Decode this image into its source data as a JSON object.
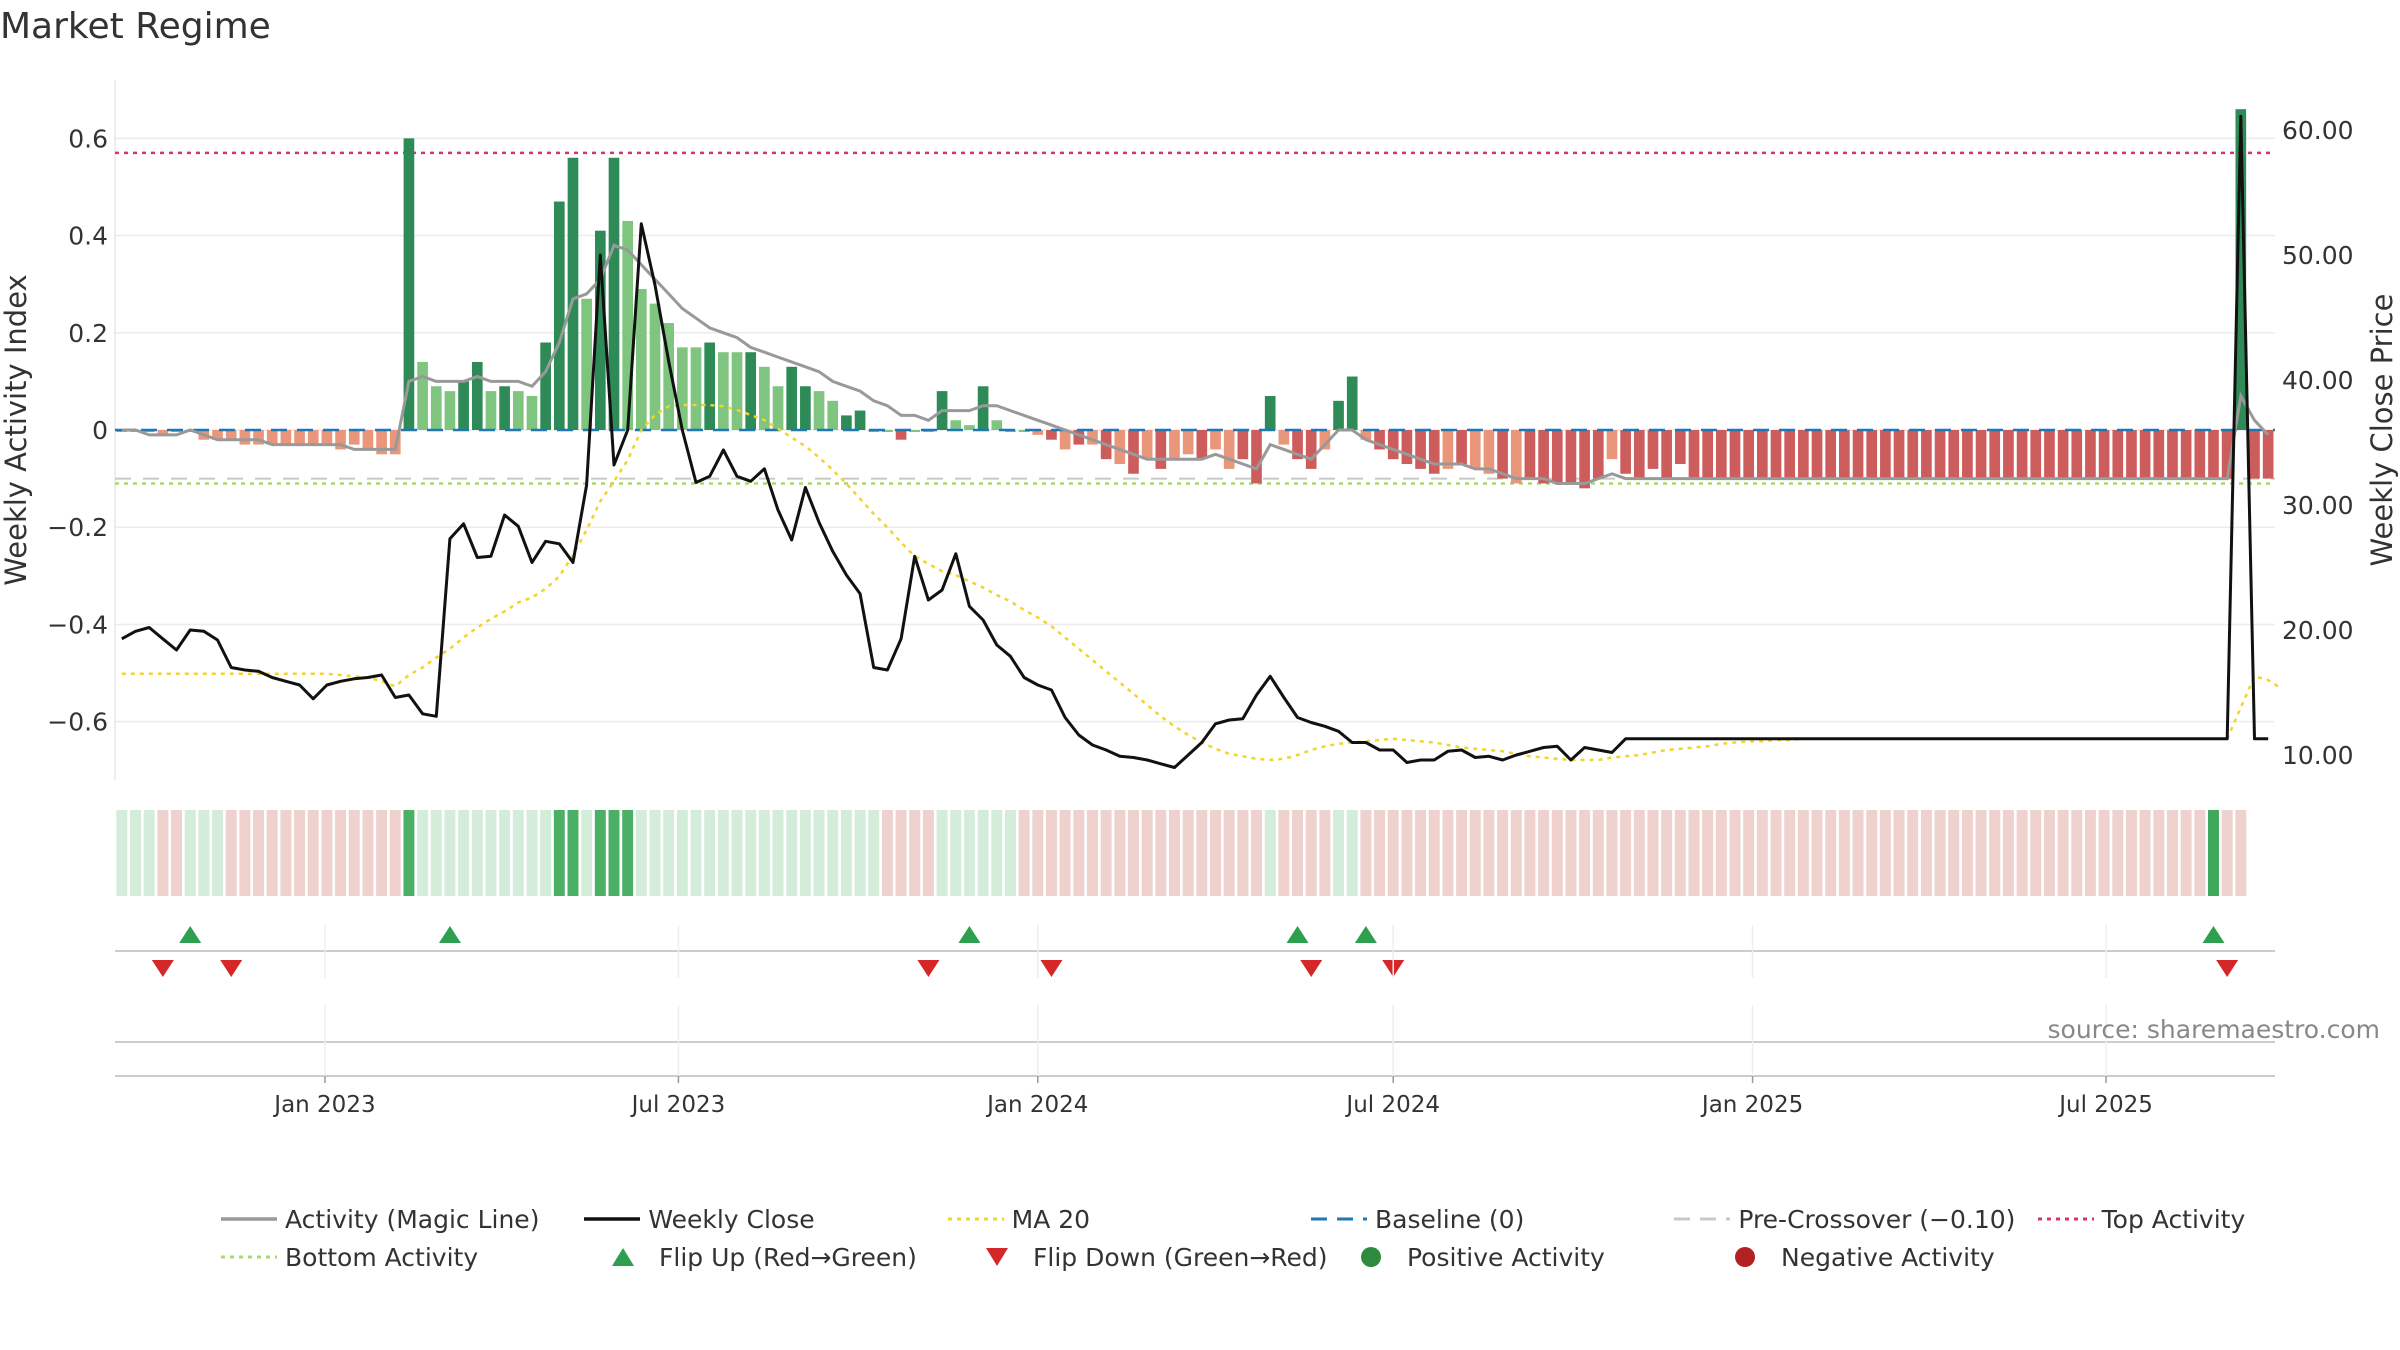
{
  "title": "Market Regime",
  "source": "source: sharemaestro.com",
  "colors": {
    "activity_line": "#999999",
    "weekly_close": "#111111",
    "ma20": "#f2d52b",
    "baseline": "#1f77b4",
    "pre_crossover": "#c8c8c8",
    "top_activity": "#d6336c",
    "bottom_activity": "#a9d86e",
    "flip_up": "#2e9e4f",
    "flip_down": "#d62728",
    "positive_activity": "#2e8b3d",
    "negative_activity": "#b22222",
    "bar_strong_green": "#2e8b57",
    "bar_light_green": "#7fc47f",
    "bar_strong_red": "#cd5c5c",
    "bar_light_red": "#e9967a"
  },
  "chart_data": {
    "type": "bar",
    "title": "Market Regime",
    "y_left_label": "Weekly Activity Index",
    "y_right_label": "Weekly Close Price",
    "y_left_ticks": [
      "0.6",
      "0.4",
      "0.2",
      "0",
      "−0.2",
      "−0.4",
      "−0.6"
    ],
    "y_left_tick_values": [
      0.6,
      0.4,
      0.2,
      0,
      -0.2,
      -0.4,
      -0.6
    ],
    "y_right_ticks": [
      "60.00",
      "50.00",
      "40.00",
      "30.00",
      "20.00",
      "10.00"
    ],
    "y_right_tick_values": [
      60,
      50,
      40,
      30,
      20,
      10
    ],
    "y_left_lim": [
      -0.72,
      0.72
    ],
    "y_right_lim": [
      8,
      64
    ],
    "x_start": "2022-09-19",
    "week_interval_days": 7,
    "x_ticks": [
      "Jan 2023",
      "Jul 2023",
      "Jan 2024",
      "Jul 2024",
      "Jan 2025",
      "Jul 2025"
    ],
    "x_tick_dates": [
      "2023-01-01",
      "2023-07-01",
      "2024-01-01",
      "2024-07-01",
      "2025-01-01",
      "2025-07-01"
    ],
    "top_activity": 0.57,
    "bottom_activity": -0.11,
    "baseline": 0,
    "pre_crossover": -0.1,
    "activity": [
      0,
      0,
      0,
      -0.01,
      0,
      0,
      -0.02,
      -0.02,
      -0.02,
      -0.03,
      -0.03,
      -0.03,
      -0.03,
      -0.03,
      -0.03,
      -0.03,
      -0.04,
      -0.03,
      -0.04,
      -0.05,
      -0.05,
      0.6,
      0.14,
      0.09,
      0.08,
      0.1,
      0.14,
      0.08,
      0.09,
      0.08,
      0.07,
      0.18,
      0.47,
      0.56,
      0.27,
      0.41,
      0.56,
      0.43,
      0.29,
      0.26,
      0.22,
      0.17,
      0.17,
      0.18,
      0.16,
      0.16,
      0.16,
      0.13,
      0.09,
      0.13,
      0.09,
      0.08,
      0.06,
      0.03,
      0.04,
      0,
      0,
      -0.02,
      0,
      0,
      0.08,
      0.02,
      0.01,
      0.09,
      0.02,
      0,
      0,
      -0.01,
      -0.02,
      -0.04,
      -0.03,
      -0.03,
      -0.06,
      -0.07,
      -0.09,
      -0.06,
      -0.08,
      -0.06,
      -0.05,
      -0.06,
      -0.04,
      -0.08,
      -0.06,
      -0.11,
      0.07,
      -0.03,
      -0.06,
      -0.08,
      -0.04,
      0.06,
      0.11,
      -0.02,
      -0.04,
      -0.06,
      -0.07,
      -0.08,
      -0.09,
      -0.08,
      -0.07,
      -0.08,
      -0.09,
      -0.1,
      -0.11,
      -0.1,
      -0.11,
      -0.11,
      -0.11,
      -0.12,
      -0.1,
      -0.06,
      -0.09,
      -0.1,
      -0.08,
      -0.1,
      -0.07,
      -0.1,
      -0.1,
      -0.1,
      -0.1,
      -0.1,
      -0.1,
      -0.1,
      -0.1,
      -0.1,
      -0.1,
      -0.1,
      -0.1,
      -0.1,
      -0.1,
      -0.1,
      -0.1,
      -0.1,
      -0.1,
      -0.1,
      -0.1,
      -0.1,
      -0.1,
      -0.1,
      -0.1,
      -0.1,
      -0.1,
      -0.1,
      -0.1,
      -0.1,
      -0.1,
      -0.1,
      -0.1,
      -0.1,
      -0.1,
      -0.1,
      -0.1,
      -0.1,
      -0.1,
      -0.1,
      -0.1,
      0.66,
      -0.1,
      -0.1
    ],
    "activity_strength": [
      0,
      0,
      0,
      0,
      0,
      0,
      0,
      0,
      0,
      0,
      0,
      0,
      0,
      0,
      0,
      0,
      0,
      0,
      0,
      0,
      0,
      1,
      0,
      0,
      0,
      1,
      1,
      0,
      1,
      0,
      0,
      1,
      1,
      1,
      0,
      1,
      1,
      0,
      0,
      0,
      0,
      0,
      0,
      1,
      0,
      0,
      1,
      0,
      0,
      1,
      1,
      0,
      0,
      1,
      1,
      0,
      0,
      1,
      0,
      0,
      1,
      0,
      0,
      1,
      0,
      0,
      0,
      0,
      1,
      0,
      1,
      0,
      1,
      0,
      1,
      0,
      1,
      0,
      0,
      1,
      0,
      0,
      1,
      1,
      1,
      0,
      1,
      1,
      0,
      1,
      1,
      0,
      1,
      1,
      1,
      1,
      1,
      0,
      1,
      0,
      0,
      1,
      0,
      1,
      1,
      1,
      1,
      1,
      1,
      0,
      1,
      1,
      1,
      1,
      1,
      1,
      1,
      1,
      1,
      1,
      1,
      1,
      1,
      1,
      1,
      1,
      1,
      1,
      1,
      1,
      1,
      1,
      1,
      1,
      1,
      1,
      1,
      1,
      1,
      1,
      1,
      1,
      1,
      1,
      1,
      1,
      1,
      1,
      1,
      1,
      1,
      1,
      1,
      1,
      1,
      1,
      1,
      1,
      1
    ],
    "activity_line": [
      0,
      0,
      -0.01,
      -0.01,
      -0.01,
      0,
      -0.01,
      -0.02,
      -0.02,
      -0.02,
      -0.02,
      -0.03,
      -0.03,
      -0.03,
      -0.03,
      -0.03,
      -0.03,
      -0.04,
      -0.04,
      -0.04,
      -0.04,
      0.1,
      0.11,
      0.1,
      0.1,
      0.1,
      0.11,
      0.1,
      0.1,
      0.1,
      0.09,
      0.12,
      0.18,
      0.27,
      0.28,
      0.31,
      0.38,
      0.37,
      0.34,
      0.31,
      0.28,
      0.25,
      0.23,
      0.21,
      0.2,
      0.19,
      0.17,
      0.16,
      0.15,
      0.14,
      0.13,
      0.12,
      0.1,
      0.09,
      0.08,
      0.06,
      0.05,
      0.03,
      0.03,
      0.02,
      0.04,
      0.04,
      0.04,
      0.05,
      0.05,
      0.04,
      0.03,
      0.02,
      0.01,
      0,
      -0.01,
      -0.02,
      -0.03,
      -0.04,
      -0.05,
      -0.06,
      -0.06,
      -0.06,
      -0.06,
      -0.06,
      -0.05,
      -0.06,
      -0.07,
      -0.08,
      -0.03,
      -0.04,
      -0.05,
      -0.06,
      -0.03,
      0,
      0,
      -0.02,
      -0.03,
      -0.04,
      -0.05,
      -0.06,
      -0.07,
      -0.07,
      -0.07,
      -0.08,
      -0.08,
      -0.09,
      -0.1,
      -0.1,
      -0.1,
      -0.11,
      -0.11,
      -0.11,
      -0.1,
      -0.09,
      -0.1,
      -0.1,
      -0.1,
      -0.1,
      -0.1,
      -0.1,
      -0.1,
      -0.1,
      -0.1,
      -0.1,
      -0.1,
      -0.1,
      -0.1,
      -0.1,
      -0.1,
      -0.1,
      -0.1,
      -0.1,
      -0.1,
      -0.1,
      -0.1,
      -0.1,
      -0.1,
      -0.1,
      -0.1,
      -0.1,
      -0.1,
      -0.1,
      -0.1,
      -0.1,
      -0.1,
      -0.1,
      -0.1,
      -0.1,
      -0.1,
      -0.1,
      -0.1,
      -0.1,
      -0.1,
      -0.1,
      -0.1,
      -0.1,
      -0.1,
      -0.1,
      -0.1,
      0.07,
      0.02,
      -0.01
    ],
    "weekly_close": [
      19.3,
      19.9,
      20.2,
      19.3,
      18.4,
      20.0,
      19.9,
      19.2,
      17.0,
      16.8,
      16.7,
      16.2,
      15.9,
      15.6,
      14.5,
      15.6,
      15.9,
      16.1,
      16.2,
      16.4,
      14.6,
      14.8,
      13.3,
      13.1,
      27.3,
      28.5,
      25.8,
      25.9,
      29.2,
      28.3,
      25.4,
      27.1,
      26.9,
      25.4,
      31.6,
      50.0,
      33.2,
      36.0,
      52.5,
      47.6,
      41.5,
      36.0,
      31.8,
      32.3,
      34.4,
      32.3,
      31.9,
      32.9,
      29.6,
      27.2,
      31.4,
      28.6,
      26.3,
      24.4,
      22.9,
      17.0,
      16.8,
      19.3,
      25.9,
      22.4,
      23.2,
      26.1,
      21.9,
      20.8,
      18.8,
      17.9,
      16.2,
      15.6,
      15.2,
      13.0,
      11.6,
      10.8,
      10.4,
      9.9,
      9.8,
      9.6,
      9.3,
      9.0,
      10.0,
      11.0,
      12.5,
      12.8,
      12.9,
      14.8,
      16.3,
      14.6,
      13.0,
      12.6,
      12.3,
      11.9,
      11.0,
      11.0,
      10.4,
      10.4,
      9.4,
      9.6,
      9.6,
      10.3,
      10.4,
      9.8,
      9.9,
      9.6,
      10.0,
      10.3,
      10.6,
      10.7,
      9.6,
      10.6,
      10.4,
      10.2,
      11.3,
      11.3,
      11.3,
      11.3,
      11.3,
      11.3,
      11.3,
      11.3,
      11.3,
      11.3,
      11.3,
      11.3,
      11.3,
      11.3,
      11.3,
      11.3,
      11.3,
      11.3,
      11.3,
      11.3,
      11.3,
      11.3,
      11.3,
      11.3,
      11.3,
      11.3,
      11.3,
      11.3,
      11.3,
      11.3,
      11.3,
      11.3,
      11.3,
      11.3,
      11.3,
      11.3,
      11.3,
      11.3,
      11.3,
      11.3,
      11.3,
      11.3,
      11.3,
      11.3,
      11.3,
      61.1,
      11.3,
      11.3
    ],
    "ma20": [
      16.5,
      16.5,
      16.5,
      16.5,
      16.5,
      16.5,
      16.5,
      16.5,
      16.5,
      16.5,
      16.5,
      16.5,
      16.5,
      16.5,
      16.5,
      16.5,
      16.4,
      16.3,
      16.2,
      15.9,
      15.5,
      16.4,
      17.0,
      17.8,
      18.5,
      19.4,
      20.2,
      20.9,
      21.5,
      22.2,
      22.6,
      23.3,
      24.3,
      26.0,
      28.0,
      30.3,
      31.9,
      33.6,
      36.0,
      37.2,
      37.9,
      38.0,
      38.0,
      38.0,
      37.9,
      37.6,
      37.2,
      36.8,
      36.1,
      35.4,
      34.7,
      33.8,
      32.8,
      31.7,
      30.5,
      29.3,
      28.2,
      27.0,
      25.9,
      25.3,
      24.7,
      24.4,
      23.9,
      23.4,
      22.8,
      22.3,
      21.6,
      21.0,
      20.3,
      19.4,
      18.5,
      17.6,
      16.7,
      15.8,
      14.9,
      14.0,
      13.1,
      12.3,
      11.6,
      11.0,
      10.5,
      10.1,
      9.9,
      9.7,
      9.6,
      9.7,
      10.0,
      10.4,
      10.7,
      10.9,
      11.0,
      11.1,
      11.2,
      11.3,
      11.2,
      11.1,
      11.0,
      10.8,
      10.6,
      10.5,
      10.4,
      10.3,
      10.1,
      9.9,
      9.8,
      9.7,
      9.6,
      9.6,
      9.6,
      9.8,
      9.9,
      10.0,
      10.2,
      10.4,
      10.5,
      10.6,
      10.7,
      10.9,
      11.0,
      11.1,
      11.1,
      11.2,
      11.2,
      11.3,
      11.3,
      11.3,
      11.3,
      11.3,
      11.3,
      11.3,
      11.3,
      11.3,
      11.3,
      11.3,
      11.3,
      11.3,
      11.3,
      11.3,
      11.3,
      11.3,
      11.3,
      11.3,
      11.3,
      11.3,
      11.3,
      11.3,
      11.3,
      11.3,
      11.3,
      11.3,
      11.3,
      11.3,
      11.3,
      11.3,
      11.3,
      13.8,
      16.3,
      16.0,
      15.3
    ],
    "regime_strip": [
      1,
      1,
      1,
      -1,
      -1,
      1,
      1,
      1,
      -1,
      -1,
      -1,
      -1,
      -1,
      -1,
      -1,
      -1,
      -1,
      -1,
      -1,
      -1,
      -1,
      2,
      1,
      1,
      1,
      1,
      1,
      1,
      1,
      1,
      1,
      1,
      2,
      2,
      1,
      2,
      2,
      2,
      1,
      1,
      1,
      1,
      1,
      1,
      1,
      1,
      1,
      1,
      1,
      1,
      1,
      1,
      1,
      1,
      1,
      1,
      -1,
      -1,
      -1,
      -1,
      1,
      1,
      1,
      1,
      1,
      1,
      -1,
      -1,
      -1,
      -1,
      -1,
      -1,
      -1,
      -1,
      -1,
      -1,
      -1,
      -1,
      -1,
      -1,
      -1,
      -1,
      -1,
      -1,
      1,
      -1,
      -1,
      -1,
      -1,
      1,
      1,
      -1,
      -1,
      -1,
      -1,
      -1,
      -1,
      -1,
      -1,
      -1,
      -1,
      -1,
      -1,
      -1,
      -1,
      -1,
      -1,
      -1,
      -1,
      -1,
      -1,
      -1,
      -1,
      -1,
      -1,
      -1,
      -1,
      -1,
      -1,
      -1,
      -1,
      -1,
      -1,
      -1,
      -1,
      -1,
      -1,
      -1,
      -1,
      -1,
      -1,
      -1,
      -1,
      -1,
      -1,
      -1,
      -1,
      -1,
      -1,
      -1,
      -1,
      -1,
      -1,
      -1,
      -1,
      -1,
      -1,
      -1,
      -1,
      -1,
      -1,
      -1,
      -1,
      3,
      -1,
      -1
    ],
    "flip_up_weeks": [
      5,
      24,
      62,
      86,
      91,
      153
    ],
    "flip_down_weeks": [
      3,
      8,
      59,
      68,
      87,
      93,
      154
    ]
  },
  "legend": {
    "row1": [
      {
        "label": "Activity (Magic Line)",
        "symbol": "solid-line",
        "icon": "activity-line-icon",
        "color": "#999999"
      },
      {
        "label": "Weekly Close",
        "symbol": "solid-line",
        "icon": "weekly-close-line-icon",
        "color": "#111111"
      },
      {
        "label": "MA 20",
        "symbol": "dotted-line",
        "icon": "ma20-line-icon",
        "color": "#f2d52b"
      },
      {
        "label": "Baseline (0)",
        "symbol": "dashed-line",
        "icon": "baseline-line-icon",
        "color": "#1f77b4"
      },
      {
        "label": "Pre-Crossover (−0.10)",
        "symbol": "dashed-line",
        "icon": "pre-crossover-line-icon",
        "color": "#c8c8c8"
      },
      {
        "label": "Top Activity",
        "symbol": "dotted-line",
        "icon": "top-activity-line-icon",
        "color": "#d6336c"
      }
    ],
    "row2": [
      {
        "label": "Bottom Activity",
        "symbol": "dotted-line",
        "icon": "bottom-activity-line-icon",
        "color": "#a9d86e"
      },
      {
        "label": "Flip Up (Red→Green)",
        "symbol": "triangle-up",
        "icon": "triangle-up-icon",
        "color": "#2e9e4f"
      },
      {
        "label": "Flip Down (Green→Red)",
        "symbol": "triangle-down",
        "icon": "triangle-down-icon",
        "color": "#d62728"
      },
      {
        "label": "Positive Activity",
        "symbol": "dot",
        "icon": "positive-dot-icon",
        "color": "#2e8b3d"
      },
      {
        "label": "Negative Activity",
        "symbol": "dot",
        "icon": "negative-dot-icon",
        "color": "#b22222"
      }
    ]
  }
}
